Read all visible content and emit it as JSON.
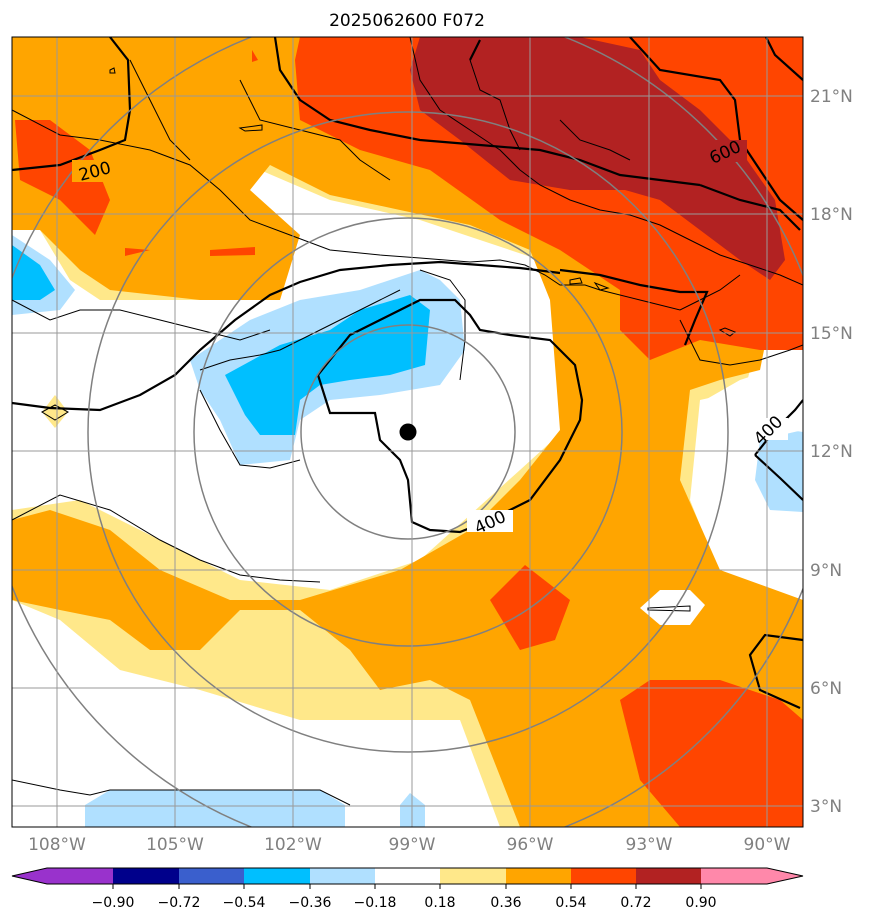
{
  "title": "2025062600 F072",
  "lon_ticks": [
    "108°W",
    "105°W",
    "102°W",
    "99°W",
    "96°W",
    "93°W",
    "90°W"
  ],
  "lat_ticks": [
    "3°N",
    "6°N",
    "9°N",
    "12°N",
    "15°N",
    "18°N",
    "21°N"
  ],
  "contour_labels": [
    "200",
    "400",
    "400",
    "600"
  ],
  "colorbar": {
    "ticks": [
      "−0.90",
      "−0.72",
      "−0.54",
      "−0.36",
      "−0.18",
      "0.18",
      "0.36",
      "0.54",
      "0.72",
      "0.90"
    ],
    "colors": [
      "#9932cc",
      "#00008b",
      "#3a5fcd",
      "#00bfff",
      "#b0e0ff",
      "#ffffff",
      "#ffe88a",
      "#ffa500",
      "#ff4500",
      "#b22222",
      "#ff88aa"
    ]
  },
  "colors": {
    "very_weak_pos": "#ffe88a",
    "weak_pos": "#ffa500",
    "mod_pos": "#ff4500",
    "strong_pos": "#b22222",
    "weak_neg": "#b0e0ff",
    "mod_neg": "#00bfff",
    "grid": "#888888",
    "range_ring": "#808080"
  },
  "storm_center": {
    "lat": 12.5,
    "lon": -99.1
  }
}
